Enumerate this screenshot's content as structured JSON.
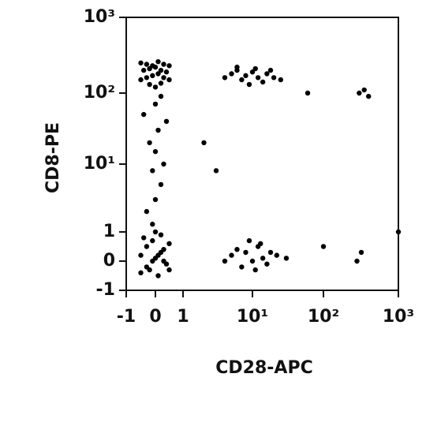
{
  "chart_data": {
    "type": "scatter",
    "x_label": "CD28-APC",
    "y_label": "CD8-PE",
    "color": "#000000",
    "xlim": [
      -1,
      1000
    ],
    "ylim": [
      -1,
      1000
    ],
    "xticks": [
      -1,
      0,
      1,
      {
        "value": 10,
        "label": "10¹"
      },
      {
        "value": 100,
        "label": "10²"
      },
      {
        "value": 1000,
        "label": "10³"
      }
    ],
    "yticks": [
      -1,
      0,
      1,
      {
        "value": 10,
        "label": "10¹"
      },
      {
        "value": 100,
        "label": "10²"
      },
      {
        "value": 1000,
        "label": "10³"
      }
    ],
    "x": [
      -0.5,
      -0.3,
      -0.1,
      0.1,
      0.3,
      0.5,
      -0.4,
      -0.2,
      0,
      0.2,
      0.4,
      -0.5,
      -0.3,
      -0.1,
      0.1,
      0.3,
      0.5,
      -0.2,
      0,
      0.2,
      4,
      5,
      6,
      7,
      8,
      10,
      12,
      14,
      16,
      18,
      20,
      6,
      9,
      11,
      25,
      -0.3,
      0,
      0.2,
      -0.1,
      0.3,
      0,
      -0.2,
      0.1,
      0.4,
      -0.4,
      0,
      0.2,
      -0.5,
      -0.3,
      -0.1,
      0.1,
      0.3,
      0.5,
      -0.4,
      -0.2,
      0,
      0.2,
      0.4,
      -0.5,
      -0.3,
      -0.1,
      0.1,
      0.3,
      0.5,
      0,
      -0.1,
      0.2,
      4,
      5,
      6,
      7,
      8,
      10,
      12,
      14,
      16,
      18,
      22,
      9,
      11,
      13,
      30,
      2,
      3,
      60,
      300,
      350,
      400,
      280,
      320,
      1000,
      100
    ],
    "values": [
      150,
      160,
      170,
      180,
      160,
      150,
      200,
      210,
      220,
      200,
      190,
      250,
      240,
      230,
      260,
      240,
      230,
      130,
      120,
      135,
      160,
      180,
      200,
      150,
      170,
      190,
      160,
      140,
      180,
      200,
      160,
      220,
      130,
      210,
      150,
      2,
      3,
      5,
      8,
      10,
      15,
      20,
      30,
      40,
      50,
      70,
      90,
      -0.4,
      -0.2,
      0,
      0.2,
      0.4,
      0.6,
      0.8,
      -0.3,
      0.1,
      0.3,
      -0.1,
      0.2,
      0.5,
      0.7,
      -0.5,
      0,
      -0.3,
      1,
      1.3,
      0.9,
      0,
      0.2,
      0.4,
      -0.2,
      0.3,
      0,
      0.5,
      0.1,
      -0.1,
      0.3,
      0.2,
      0.7,
      -0.3,
      0.6,
      0.1,
      20,
      8,
      100,
      100,
      110,
      90,
      0,
      0.3,
      1,
      0.5
    ]
  }
}
